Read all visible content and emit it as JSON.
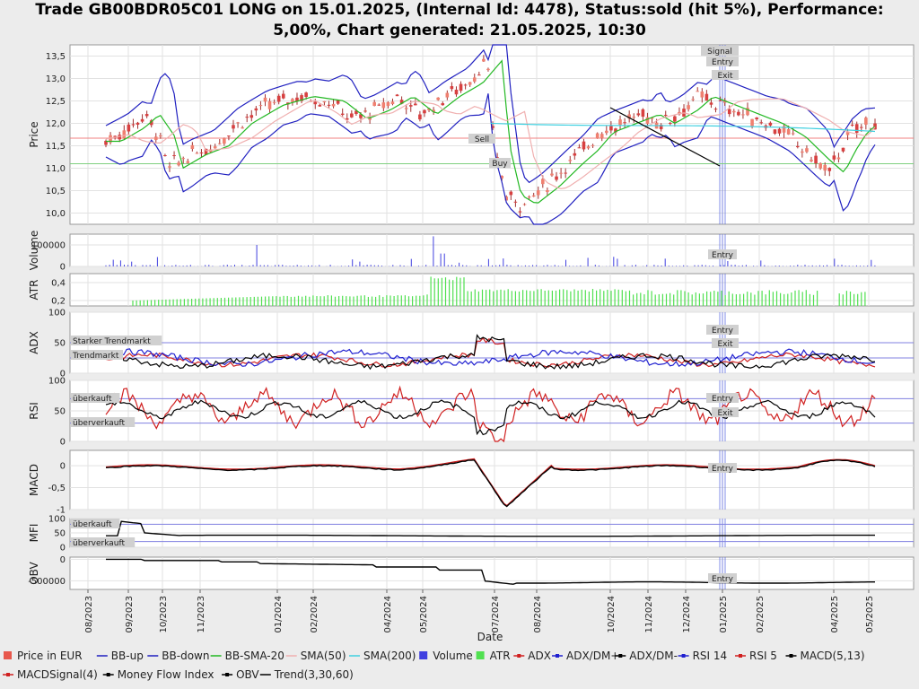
{
  "title_line1": "Trade GB00BDR05C01 LONG on 15.01.2025, (Internal Id: 4478), Status:sold (hit 5%), Performance:",
  "title_line2": "5,00%, Chart generated: 21.05.2025, 10:30",
  "chart_data": {
    "type": "line",
    "xlabel": "Date",
    "x_ticks": [
      "08/2023",
      "09/2023",
      "10/2023",
      "11/2023",
      "01/2024",
      "02/2024",
      "04/2024",
      "05/2024",
      "07/2024",
      "08/2024",
      "10/2024",
      "11/2024",
      "12/2024",
      "01/2025",
      "02/2025",
      "04/2025",
      "05/2025"
    ],
    "panels": [
      {
        "id": "price",
        "ylabel": "Price",
        "ylim": [
          9.75,
          13.75
        ],
        "ticks": [
          "13,5",
          "13,0",
          "12,5",
          "12,0",
          "11,5",
          "11,0",
          "10,5",
          "10,0"
        ],
        "tick_values": [
          13.5,
          13.0,
          12.5,
          12.0,
          11.5,
          11.0,
          10.5,
          10.0
        ],
        "annotations": [
          "Signal",
          "Entry",
          "Exit",
          "Sell",
          "Buy"
        ]
      },
      {
        "id": "volume",
        "ylabel": "Volume",
        "ylim": [
          0,
          150000
        ],
        "ticks": [
          "100000",
          "0"
        ],
        "tick_values": [
          100000,
          0
        ],
        "annotations": [
          "Entry"
        ]
      },
      {
        "id": "atr",
        "ylabel": "ATR",
        "ylim": [
          0.14,
          0.5
        ],
        "ticks": [
          "0,4",
          "0,2"
        ],
        "tick_values": [
          0.4,
          0.2
        ]
      },
      {
        "id": "adx",
        "ylabel": "ADX",
        "ylim": [
          0,
          100
        ],
        "ticks": [
          "100",
          "50",
          "0"
        ],
        "tick_values": [
          100,
          50,
          0
        ],
        "annotations": [
          "Starker Trendmarkt",
          "Trendmarkt",
          "Entry",
          "Exit"
        ]
      },
      {
        "id": "rsi",
        "ylabel": "RSI",
        "ylim": [
          0,
          100
        ],
        "ticks": [
          "100",
          "50",
          "0"
        ],
        "tick_values": [
          100,
          50,
          0
        ],
        "annotations": [
          "überkauft",
          "überverkauft",
          "Entry",
          "Exit"
        ]
      },
      {
        "id": "macd",
        "ylabel": "MACD",
        "ylim": [
          -1,
          0.35
        ],
        "ticks": [
          "0",
          "-0,5",
          "-1"
        ],
        "tick_values": [
          0,
          -0.5,
          -1
        ],
        "annotations": [
          "Entry"
        ]
      },
      {
        "id": "mfi",
        "ylabel": "MFI",
        "ylim": [
          0,
          100
        ],
        "ticks": [
          "100",
          "50",
          "0"
        ],
        "tick_values": [
          100,
          50,
          0
        ],
        "annotations": [
          "überkauft",
          "überverkauft"
        ]
      },
      {
        "id": "obv",
        "ylabel": "OBV",
        "ylim": [
          -700000,
          50000
        ],
        "ticks": [
          "0",
          "-500000"
        ],
        "tick_values": [
          0,
          -500000
        ],
        "annotations": [
          "Entry"
        ]
      }
    ],
    "legend": [
      {
        "name": "Price in EUR",
        "color": "#e8584c",
        "kind": "box"
      },
      {
        "name": "BB-up",
        "color": "#2020c0",
        "kind": "line"
      },
      {
        "name": "BB-down",
        "color": "#2020c0",
        "kind": "line"
      },
      {
        "name": "BB-SMA-20",
        "color": "#22b822",
        "kind": "line"
      },
      {
        "name": "SMA(50)",
        "color": "#f0b0b0",
        "kind": "line"
      },
      {
        "name": "SMA(200)",
        "color": "#40d0e0",
        "kind": "line"
      },
      {
        "name": "Volume",
        "color": "#4040e0",
        "kind": "box"
      },
      {
        "name": "ATR",
        "color": "#50e050",
        "kind": "box"
      },
      {
        "name": "ADX",
        "color": "#d02020",
        "kind": "dotline"
      },
      {
        "name": "ADX/DM+",
        "color": "#2020d0",
        "kind": "dotline"
      },
      {
        "name": "ADX/DM-",
        "color": "#000000",
        "kind": "dotline"
      },
      {
        "name": "RSI 14",
        "color": "#2020d0",
        "kind": "dotline"
      },
      {
        "name": "RSI 5",
        "color": "#d02020",
        "kind": "dotline"
      },
      {
        "name": "MACD(5,13)",
        "color": "#000000",
        "kind": "dotline"
      },
      {
        "name": "MACDSignal(4)",
        "color": "#d02020",
        "kind": "dotline"
      },
      {
        "name": "Money Flow Index",
        "color": "#000000",
        "kind": "dotline"
      },
      {
        "name": "OBV",
        "color": "#000000",
        "kind": "dotline"
      },
      {
        "name": "Trend(3,30,60)",
        "color": "#000000",
        "kind": "line"
      }
    ],
    "price_key_points": [
      [
        0.0,
        11.6
      ],
      [
        0.03,
        11.9
      ],
      [
        0.05,
        12.2
      ],
      [
        0.07,
        11.7
      ],
      [
        0.08,
        11.0
      ],
      [
        0.11,
        11.3
      ],
      [
        0.14,
        11.5
      ],
      [
        0.17,
        12.0
      ],
      [
        0.21,
        12.4
      ],
      [
        0.25,
        12.6
      ],
      [
        0.29,
        12.5
      ],
      [
        0.32,
        12.1
      ],
      [
        0.35,
        12.3
      ],
      [
        0.38,
        12.6
      ],
      [
        0.41,
        12.2
      ],
      [
        0.44,
        12.6
      ],
      [
        0.47,
        12.9
      ],
      [
        0.495,
        13.4
      ],
      [
        0.505,
        11.5
      ],
      [
        0.52,
        10.4
      ],
      [
        0.54,
        10.2
      ],
      [
        0.57,
        10.6
      ],
      [
        0.6,
        11.1
      ],
      [
        0.62,
        11.4
      ],
      [
        0.64,
        11.8
      ],
      [
        0.67,
        12.0
      ],
      [
        0.7,
        12.2
      ],
      [
        0.72,
        12.0
      ],
      [
        0.75,
        12.3
      ],
      [
        0.77,
        12.6
      ],
      [
        0.8,
        12.4
      ],
      [
        0.83,
        12.2
      ],
      [
        0.86,
        12.0
      ],
      [
        0.89,
        11.7
      ],
      [
        0.92,
        11.2
      ],
      [
        0.94,
        10.9
      ],
      [
        0.955,
        11.4
      ],
      [
        0.97,
        11.8
      ],
      [
        0.985,
        12.0
      ]
    ],
    "price_key_points_2": [
      [
        0.0,
        11.7
      ],
      [
        0.03,
        11.9
      ],
      [
        0.07,
        11.3
      ],
      [
        0.11,
        11.9
      ],
      [
        0.16,
        11.6
      ],
      [
        0.22,
        12.1
      ],
      [
        0.27,
        12.6
      ],
      [
        0.32,
        11.4
      ],
      [
        0.36,
        12.2
      ],
      [
        0.4,
        12.7
      ],
      [
        0.44,
        12.1
      ],
      [
        0.48,
        12.3
      ],
      [
        0.52,
        11.2
      ],
      [
        0.56,
        11.1
      ],
      [
        0.6,
        10.8
      ],
      [
        0.64,
        11.2
      ],
      [
        0.68,
        11.6
      ],
      [
        0.72,
        12.2
      ],
      [
        0.76,
        12.3
      ],
      [
        0.8,
        12.1
      ],
      [
        0.84,
        12.6
      ],
      [
        0.88,
        12.9
      ],
      [
        0.92,
        12.6
      ],
      [
        0.96,
        12.3
      ],
      [
        1.0,
        12.6
      ]
    ]
  }
}
